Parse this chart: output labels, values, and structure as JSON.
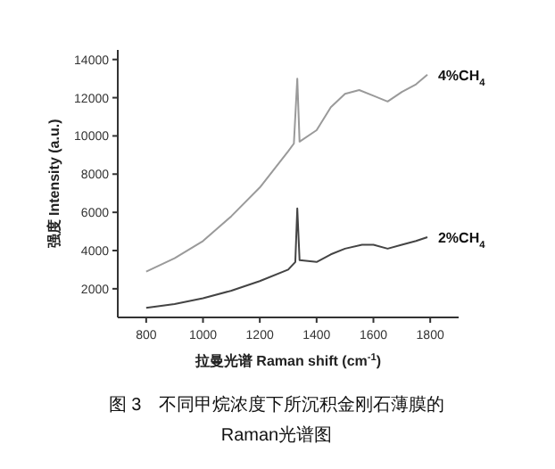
{
  "chart_data": {
    "type": "line",
    "title": "图 3　不同甲烷浓度下所沉积金刚石薄膜的 Raman光谱图",
    "xlabel": "拉曼光谱 Raman shift (cm$^{-1}$)",
    "ylabel": "强度 Intensity (a.u.)",
    "xlim": [
      700,
      1900
    ],
    "ylim": [
      500,
      14500
    ],
    "xticks": [
      800,
      1000,
      1200,
      1400,
      1600,
      1800
    ],
    "yticks": [
      2000,
      4000,
      6000,
      8000,
      10000,
      12000,
      14000
    ],
    "grid": false,
    "series": [
      {
        "name": "4%CH$_{4}$",
        "color": "#9a9a9a",
        "x": [
          800,
          900,
          1000,
          1100,
          1200,
          1300,
          1320,
          1332,
          1340,
          1400,
          1450,
          1500,
          1550,
          1600,
          1650,
          1700,
          1750,
          1790
        ],
        "values": [
          2900,
          3600,
          4500,
          5800,
          7300,
          9200,
          9600,
          13000,
          9700,
          10300,
          11500,
          12200,
          12400,
          12100,
          11800,
          12300,
          12700,
          13200
        ]
      },
      {
        "name": "2%CH$_{4}$",
        "color": "#444444",
        "x": [
          800,
          900,
          1000,
          1100,
          1200,
          1300,
          1325,
          1332,
          1340,
          1400,
          1450,
          1500,
          1560,
          1600,
          1650,
          1700,
          1750,
          1790
        ],
        "values": [
          1000,
          1200,
          1500,
          1900,
          2400,
          3000,
          3400,
          6200,
          3500,
          3400,
          3800,
          4100,
          4300,
          4300,
          4100,
          4300,
          4500,
          4700
        ]
      }
    ]
  }
}
